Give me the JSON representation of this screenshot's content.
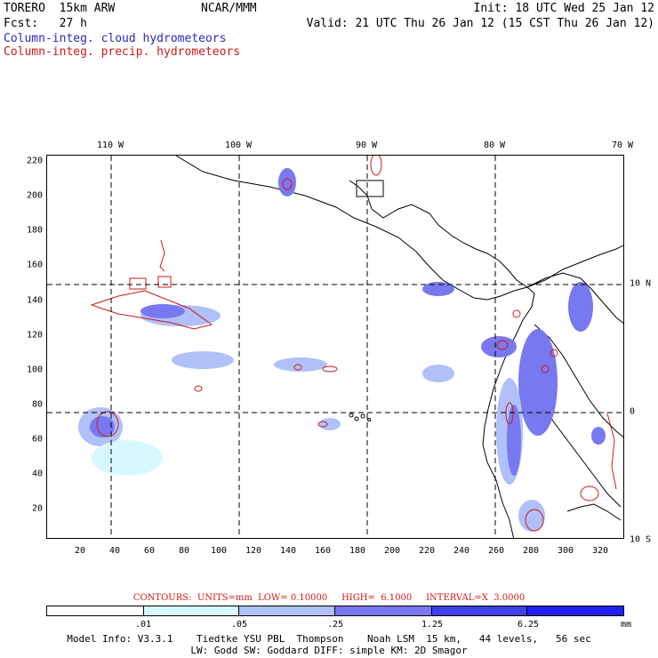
{
  "header": {
    "model": "TORERO  15km ARW",
    "org": "NCAR/MMM",
    "init": "Init: 18 UTC Wed 25 Jan 12",
    "fcst": "Fcst:   27 h",
    "valid": "Valid: 21 UTC Thu 26 Jan 12 (15 CST Thu 26 Jan 12)",
    "field1": "Column-integ. cloud hydrometeors",
    "field2": "Column-integ. precip. hydrometeors"
  },
  "axes": {
    "lon_labels": [
      "110 W",
      "100 W",
      "90 W",
      "80 W",
      "70 W"
    ],
    "lat_labels": [
      "10 N",
      "0",
      "10 S"
    ],
    "y_ticks": [
      "220",
      "200",
      "180",
      "160",
      "140",
      "120",
      "100",
      "80",
      "60",
      "40",
      "20"
    ],
    "x_ticks": [
      "20",
      "40",
      "60",
      "80",
      "100",
      "120",
      "140",
      "160",
      "180",
      "200",
      "220",
      "240",
      "260",
      "280",
      "300",
      "320"
    ]
  },
  "contours": {
    "text": "CONTOURS:  UNITS=mm  LOW= 0.10000     HIGH=  6.1000     INTERVAL=X  3.0000"
  },
  "colorbar": {
    "labels": [
      ".01",
      ".05",
      ".25",
      "1.25",
      "6.25"
    ],
    "units": "mm",
    "colors": [
      "#ffffff",
      "#d8f8ff",
      "#b0c0f8",
      "#7878f0",
      "#4040e8",
      "#2020f0"
    ]
  },
  "footer": {
    "line1": "Model Info: V3.3.1    Tiedtke YSU PBL  Thompson    Noah LSM  15 km,   44 levels,   56 sec",
    "line2": "LW: Godd SW: Goddard DIFF: simple KM: 2D Smagor"
  },
  "colors": {
    "cloud_light": "#b0c0f8",
    "cloud_mid": "#7878f0",
    "cloud_dark": "#4040e8",
    "precip_contour": "#d01818",
    "coastline": "#000000"
  }
}
